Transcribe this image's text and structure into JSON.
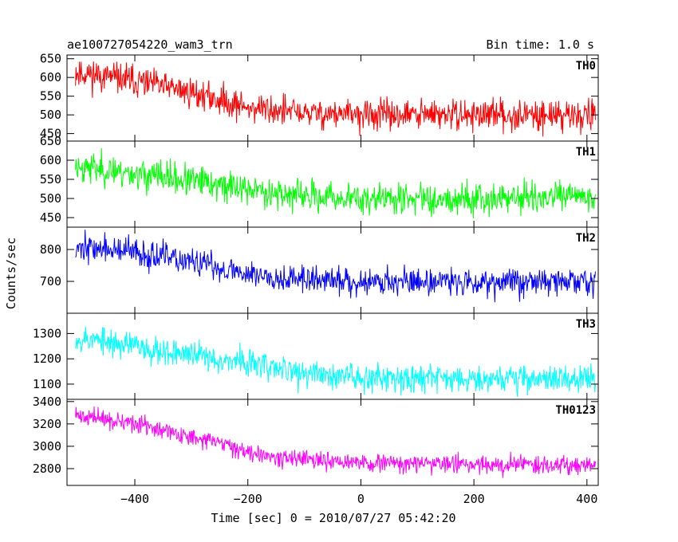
{
  "header": {
    "title": "ae100727054220_wam3_trn",
    "bin_time": "Bin time: 1.0 s"
  },
  "chart_data": {
    "type": "line",
    "xlabel": "Time [sec] 0 = 2010/07/27 05:42:20",
    "ylabel": "Counts/sec",
    "xlim": [
      -520,
      420
    ],
    "x_ticks": [
      -400,
      -200,
      0,
      200,
      400
    ],
    "x_ticklabels": [
      "−400",
      "−200",
      "0",
      "200",
      "400"
    ],
    "x_range": [
      -505,
      415
    ],
    "panels": [
      {
        "name": "TH0",
        "color": "#ff0000",
        "ylim": [
          430,
          660
        ],
        "y_ticks": [
          450,
          500,
          550,
          600,
          650
        ],
        "y_ticklabels": [
          "450",
          "500",
          "550",
          "600",
          "650"
        ],
        "trend": [
          [
            -505,
            615
          ],
          [
            -400,
            590
          ],
          [
            -300,
            560
          ],
          [
            -200,
            520
          ],
          [
            -100,
            505
          ],
          [
            0,
            500
          ],
          [
            200,
            500
          ],
          [
            415,
            500
          ]
        ],
        "noise": 28,
        "seed": 11
      },
      {
        "name": "TH1",
        "color": "#00ff00",
        "ylim": [
          425,
          650
        ],
        "y_ticks": [
          450,
          500,
          550,
          600,
          650
        ],
        "y_ticklabels": [
          "450",
          "500",
          "550",
          "600",
          "650"
        ],
        "trend": [
          [
            -505,
            585
          ],
          [
            -400,
            565
          ],
          [
            -300,
            545
          ],
          [
            -200,
            525
          ],
          [
            -100,
            505
          ],
          [
            0,
            500
          ],
          [
            200,
            500
          ],
          [
            415,
            505
          ]
        ],
        "noise": 28,
        "seed": 23
      },
      {
        "name": "TH2",
        "color": "#0000ff",
        "ylim": [
          600,
          870
        ],
        "y_ticks": [
          700,
          800
        ],
        "y_ticklabels": [
          "700",
          "800"
        ],
        "trend": [
          [
            -505,
            810
          ],
          [
            -400,
            790
          ],
          [
            -300,
            760
          ],
          [
            -200,
            725
          ],
          [
            -100,
            705
          ],
          [
            0,
            700
          ],
          [
            200,
            700
          ],
          [
            415,
            700
          ]
        ],
        "noise": 30,
        "seed": 37
      },
      {
        "name": "TH3",
        "color": "#00ffff",
        "ylim": [
          1040,
          1380
        ],
        "y_ticks": [
          1100,
          1200,
          1300
        ],
        "y_ticklabels": [
          "1100",
          "1200",
          "1300"
        ],
        "trend": [
          [
            -505,
            1285
          ],
          [
            -400,
            1250
          ],
          [
            -300,
            1215
          ],
          [
            -200,
            1185
          ],
          [
            -100,
            1140
          ],
          [
            0,
            1130
          ],
          [
            200,
            1125
          ],
          [
            415,
            1120
          ]
        ],
        "noise": 38,
        "seed": 53
      },
      {
        "name": "TH0123",
        "color": "#ff00ff",
        "ylim": [
          2650,
          3420
        ],
        "y_ticks": [
          2800,
          3000,
          3200,
          3400
        ],
        "y_ticklabels": [
          "2800",
          "3000",
          "3200",
          "3400"
        ],
        "trend": [
          [
            -505,
            3280
          ],
          [
            -400,
            3200
          ],
          [
            -300,
            3080
          ],
          [
            -200,
            2960
          ],
          [
            -100,
            2870
          ],
          [
            0,
            2850
          ],
          [
            200,
            2840
          ],
          [
            415,
            2835
          ]
        ],
        "noise": 55,
        "seed": 71
      }
    ]
  }
}
